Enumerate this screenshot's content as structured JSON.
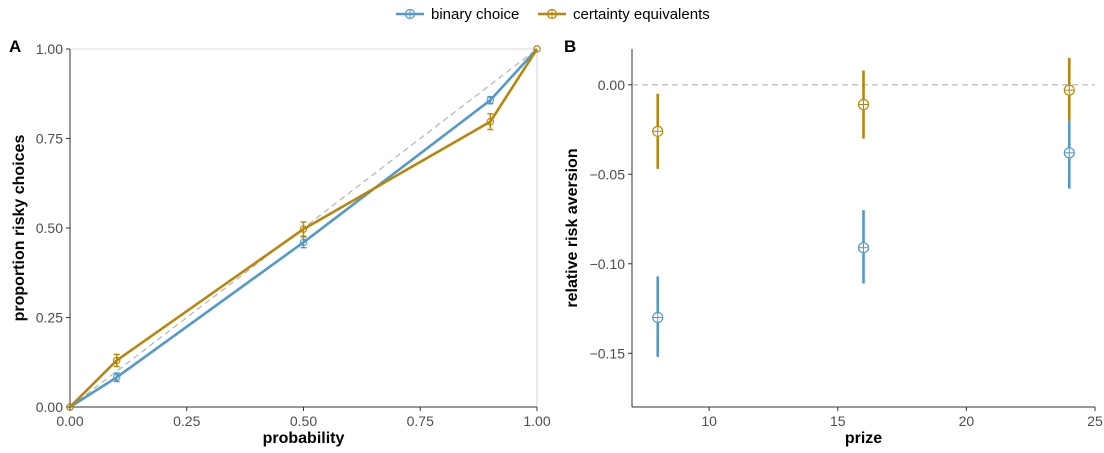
{
  "legend": {
    "items": [
      {
        "label": "binary choice",
        "color": "#5499C7"
      },
      {
        "label": "certainty equivalents",
        "color": "#B8860B"
      }
    ]
  },
  "chart_data": [
    {
      "type": "line",
      "panel_label": "A",
      "xlabel": "probability",
      "ylabel": "proportion risky choices",
      "xlim": [
        0,
        1
      ],
      "ylim": [
        0,
        1
      ],
      "xticks": [
        "0.00",
        "0.25",
        "0.50",
        "0.75",
        "1.00"
      ],
      "yticks": [
        "0.00",
        "0.25",
        "0.50",
        "0.75",
        "1.00"
      ],
      "grid": false,
      "reference_line": "diagonal dashed y = x",
      "series": [
        {
          "name": "binary choice",
          "color": "#5499C7",
          "x": [
            0,
            0.1,
            0.5,
            0.9,
            1.0
          ],
          "y": [
            0,
            0.083,
            0.46,
            0.857,
            1.0
          ],
          "err": [
            0,
            0.012,
            0.015,
            0.01,
            0
          ]
        },
        {
          "name": "certainty equivalents",
          "color": "#B8860B",
          "x": [
            0,
            0.1,
            0.5,
            0.9,
            1.0
          ],
          "y": [
            0,
            0.13,
            0.497,
            0.797,
            1.0
          ],
          "err": [
            0,
            0.017,
            0.02,
            0.022,
            0
          ]
        }
      ]
    },
    {
      "type": "scatter",
      "panel_label": "B",
      "xlabel": "prize",
      "ylabel": "relative risk aversion",
      "xlim": [
        7,
        25
      ],
      "ylim": [
        -0.18,
        0.02
      ],
      "xticks": [
        "10",
        "15",
        "20",
        "25"
      ],
      "yticks": [
        "0.00",
        "-0.05",
        "-0.10",
        "-0.15"
      ],
      "grid": false,
      "reference_line": "horizontal dashed y = 0",
      "series": [
        {
          "name": "binary choice",
          "color": "#5499C7",
          "x": [
            8,
            16,
            24
          ],
          "y": [
            -0.13,
            -0.091,
            -0.038
          ],
          "ymin": [
            -0.152,
            -0.111,
            -0.058
          ],
          "ymax": [
            -0.107,
            -0.07,
            -0.02
          ]
        },
        {
          "name": "certainty equivalents",
          "color": "#B8860B",
          "x": [
            8,
            16,
            24
          ],
          "y": [
            -0.026,
            -0.011,
            -0.003
          ],
          "ymin": [
            -0.047,
            -0.03,
            -0.02
          ],
          "ymax": [
            -0.005,
            0.008,
            0.015
          ]
        }
      ]
    }
  ]
}
